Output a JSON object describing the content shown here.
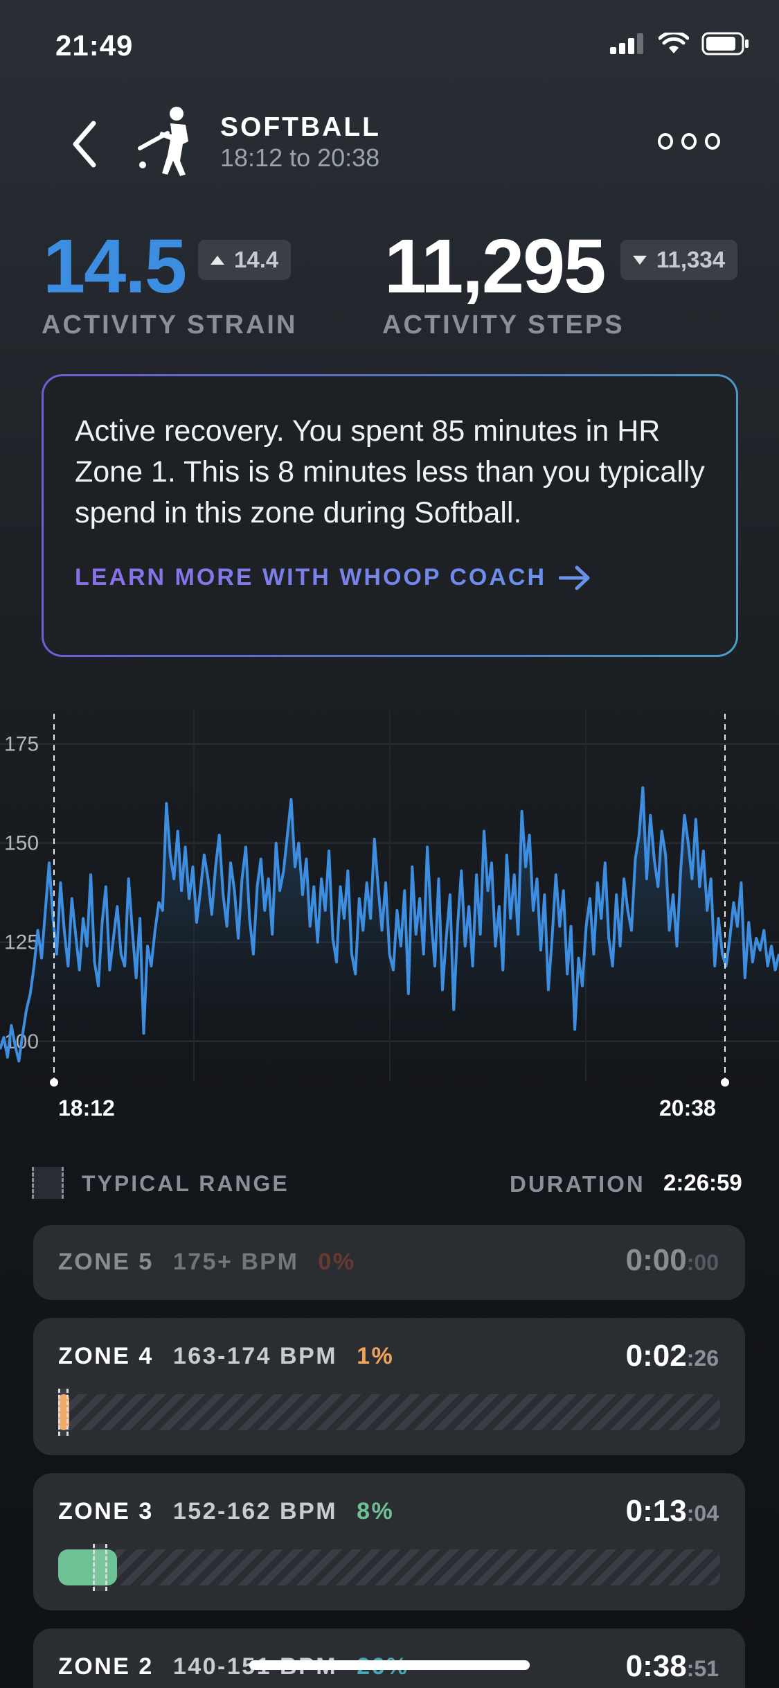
{
  "status_bar": {
    "time": "21:49"
  },
  "header": {
    "title": "SOFTBALL",
    "subtitle": "18:12 to 20:38"
  },
  "metrics": {
    "strain": {
      "value": "14.5",
      "delta": "14.4",
      "label": "ACTIVITY STRAIN",
      "color": "#3d8ee0"
    },
    "steps": {
      "value": "11,295",
      "delta": "11,334",
      "label": "ACTIVITY STEPS"
    }
  },
  "coach": {
    "text": "Active recovery. You spent 85 minutes in HR Zone 1. This is 8 minutes less than you typically spend in this zone during Softball.",
    "link_label": "LEARN MORE WITH WHOOP COACH"
  },
  "chart_data": {
    "type": "line",
    "yticks": [
      "175",
      "150",
      "125",
      "100"
    ],
    "ylim": [
      90,
      180
    ],
    "x_labels": [
      "18:12",
      "20:38"
    ],
    "series_color": "#3d8ee0",
    "series": [
      {
        "values": [
          98,
          101,
          96,
          104,
          99,
          95,
          102,
          108,
          112,
          119,
          128,
          121,
          133,
          145,
          131,
          122,
          140,
          128,
          119,
          136,
          127,
          118,
          131,
          124,
          142,
          120,
          114,
          130,
          139,
          118,
          126,
          134,
          122,
          119,
          141,
          128,
          116,
          131,
          102,
          124,
          119,
          128,
          135,
          133,
          160,
          147,
          141,
          153,
          138,
          149,
          136,
          144,
          130,
          138,
          147,
          141,
          132,
          144,
          152,
          137,
          129,
          145,
          138,
          126,
          141,
          149,
          131,
          122,
          139,
          146,
          133,
          141,
          127,
          150,
          138,
          143,
          152,
          161,
          144,
          150,
          137,
          146,
          129,
          139,
          125,
          141,
          133,
          148,
          126,
          120,
          139,
          131,
          143,
          122,
          117,
          136,
          128,
          140,
          131,
          151,
          139,
          128,
          140,
          122,
          118,
          133,
          124,
          138,
          112,
          144,
          127,
          136,
          122,
          149,
          131,
          119,
          141,
          113,
          126,
          137,
          108,
          129,
          143,
          124,
          134,
          119,
          142,
          127,
          153,
          138,
          145,
          124,
          134,
          118,
          147,
          131,
          142,
          127,
          158,
          144,
          152,
          133,
          141,
          123,
          137,
          113,
          126,
          142,
          129,
          138,
          117,
          129,
          103,
          121,
          114,
          129,
          136,
          122,
          140,
          131,
          145,
          126,
          119,
          137,
          124,
          141,
          133,
          128,
          146,
          152,
          164,
          141,
          157,
          146,
          139,
          153,
          147,
          128,
          137,
          124,
          143,
          157,
          150,
          141,
          156,
          139,
          148,
          133,
          141,
          119,
          131,
          122,
          119,
          126,
          135,
          129,
          140,
          116,
          130,
          120,
          126,
          123,
          128,
          119,
          124,
          118,
          122
        ]
      }
    ]
  },
  "range_row": {
    "typical_label": "TYPICAL RANGE",
    "duration_label": "DURATION",
    "duration_value": "2:26:59"
  },
  "zones": [
    {
      "name": "ZONE 5",
      "bpm": "175+ BPM",
      "pct": "0%",
      "time_main": "0:00",
      "time_sec": ":00",
      "pct_color": "#b5472b",
      "fill": 0.0,
      "dimmed": true
    },
    {
      "name": "ZONE 4",
      "bpm": "163-174 BPM",
      "pct": "1%",
      "time_main": "0:02",
      "time_sec": ":26",
      "pct_color": "#f0a45a",
      "fill_color": "#f0a45a",
      "fill": 0.017,
      "typ_start": 0.0,
      "typ_end": 0.016
    },
    {
      "name": "ZONE 3",
      "bpm": "152-162 BPM",
      "pct": "8%",
      "time_main": "0:13",
      "time_sec": ":04",
      "pct_color": "#6fc196",
      "fill_color": "#6fc196",
      "fill": 0.089,
      "typ_start": 0.052,
      "typ_end": 0.074
    },
    {
      "name": "ZONE 2",
      "bpm": "140-151 BPM",
      "pct": "26%",
      "time_main": "0:38",
      "time_sec": ":51",
      "pct_color": "#4aa8b5"
    }
  ]
}
